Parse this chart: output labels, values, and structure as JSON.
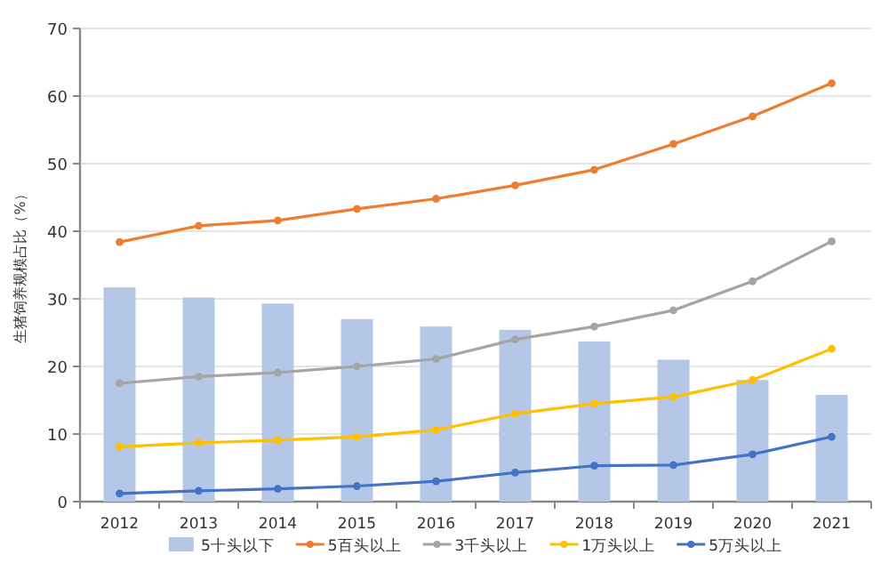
{
  "chart_data": {
    "type": "line",
    "ylabel": "生猪饲养规模占比（%）",
    "categories": [
      "2012",
      "2013",
      "2014",
      "2015",
      "2016",
      "2017",
      "2018",
      "2019",
      "2020",
      "2021"
    ],
    "series": [
      {
        "name": "5十头以下",
        "type": "bar",
        "color": "#b4c7e7",
        "values": [
          31.7,
          30.2,
          29.3,
          27.0,
          25.9,
          25.4,
          23.7,
          21.0,
          18.0,
          15.8
        ]
      },
      {
        "name": "5百头以上",
        "color": "#ed7d31",
        "values": [
          38.4,
          40.8,
          41.6,
          43.3,
          44.8,
          46.8,
          49.1,
          52.9,
          57.0,
          61.9
        ]
      },
      {
        "name": "3千头以上",
        "color": "#a5a5a5",
        "values": [
          17.5,
          18.5,
          19.1,
          20.0,
          21.1,
          24.0,
          25.9,
          28.3,
          32.6,
          38.5
        ]
      },
      {
        "name": "1万头以上",
        "color": "#ffc000",
        "values": [
          8.1,
          8.7,
          9.1,
          9.6,
          10.6,
          13.0,
          14.5,
          15.5,
          18.0,
          22.6
        ]
      },
      {
        "name": "5万头以上",
        "color": "#4472c4",
        "values": [
          1.2,
          1.6,
          1.9,
          2.3,
          3.0,
          4.3,
          5.3,
          5.4,
          7.0,
          9.6
        ]
      }
    ],
    "ylim": [
      0,
      70
    ],
    "yticks": [
      0,
      10,
      20,
      30,
      40,
      50,
      60,
      70
    ],
    "grid": "y",
    "legend": "bottom",
    "marker": "circle",
    "line_style": "solid"
  }
}
